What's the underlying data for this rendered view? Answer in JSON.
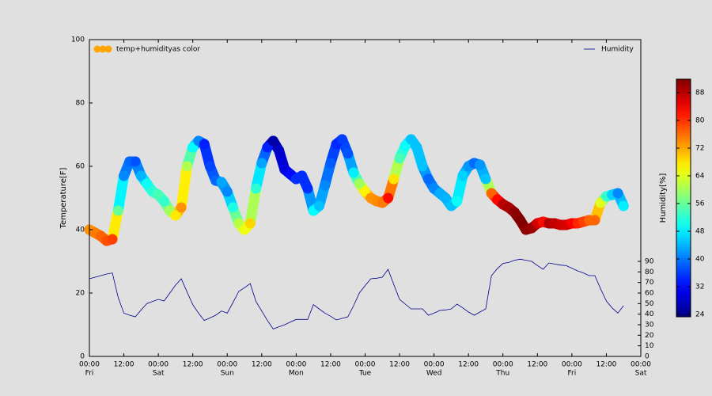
{
  "chart_data": {
    "type": "scatter",
    "ylabel": "Temperature[F]",
    "xlim": [
      0,
      192
    ],
    "xticks": [
      {
        "value": 0,
        "label": "00:00"
      },
      {
        "value": 12,
        "label": "12:00"
      },
      {
        "value": 24,
        "label": "00:00"
      },
      {
        "value": 36,
        "label": "12:00"
      },
      {
        "value": 48,
        "label": "00:00"
      },
      {
        "value": 60,
        "label": "12:00"
      },
      {
        "value": 72,
        "label": "00:00"
      },
      {
        "value": 84,
        "label": "12:00"
      },
      {
        "value": 96,
        "label": "00:00"
      },
      {
        "value": 108,
        "label": "12:00"
      },
      {
        "value": 120,
        "label": "00:00"
      },
      {
        "value": 132,
        "label": "12:00"
      },
      {
        "value": 144,
        "label": "00:00"
      },
      {
        "value": 156,
        "label": "12:00"
      },
      {
        "value": 168,
        "label": "00:00"
      },
      {
        "value": 180,
        "label": "12:00"
      },
      {
        "value": 192,
        "label": "00:00"
      }
    ],
    "day_ticks": [
      {
        "value": 0,
        "label": "Fri"
      },
      {
        "value": 24,
        "label": "Sat"
      },
      {
        "value": 48,
        "label": "Sun"
      },
      {
        "value": 72,
        "label": "Mon"
      },
      {
        "value": 96,
        "label": "Tue"
      },
      {
        "value": 120,
        "label": "Wed"
      },
      {
        "value": 144,
        "label": "Thu"
      },
      {
        "value": 168,
        "label": "Fri"
      },
      {
        "value": 192,
        "label": "Sat"
      }
    ],
    "ylim": [
      0,
      100
    ],
    "yticks": [
      0,
      20,
      40,
      60,
      80,
      100
    ],
    "y2lim": [
      0,
      300
    ],
    "y2ticks": [
      0,
      10,
      20,
      30,
      40,
      50,
      60,
      70,
      80,
      90
    ],
    "x": [
      0,
      2,
      4,
      6,
      8,
      10,
      12,
      14,
      16,
      18,
      20,
      22,
      24,
      26,
      28,
      30,
      32,
      34,
      36,
      38,
      40,
      42,
      44,
      46,
      48,
      50,
      52,
      54,
      56,
      58,
      60,
      62,
      64,
      66,
      68,
      70,
      72,
      74,
      76,
      78,
      80,
      82,
      84,
      86,
      88,
      90,
      92,
      94,
      96,
      98,
      100,
      102,
      104,
      106,
      108,
      110,
      112,
      114,
      116,
      118,
      120,
      122,
      124,
      126,
      128,
      130,
      132,
      134,
      136,
      138,
      140,
      142,
      144,
      146,
      148,
      150,
      152,
      154,
      156,
      158,
      160,
      162,
      164,
      166,
      168,
      170,
      172,
      174,
      176,
      178,
      180,
      182,
      184,
      186
    ],
    "series": [
      {
        "name": "temp+humidityas color",
        "legend_color": "#ffa500",
        "color_by": "Humidity",
        "values": [
          40,
          39,
          38,
          36.5,
          37,
          46,
          57,
          61.5,
          61.5,
          57,
          54.5,
          52,
          51,
          49,
          46,
          44.5,
          47,
          60,
          66,
          68,
          67,
          60,
          55.5,
          55,
          52,
          47,
          42,
          40,
          42,
          53,
          61,
          66,
          68,
          65,
          59,
          57.5,
          56,
          57,
          53,
          46,
          47.5,
          54,
          61,
          67,
          68.5,
          64,
          58,
          54.5,
          52,
          50,
          49,
          48.5,
          50,
          56,
          62.5,
          66.5,
          68.5,
          66,
          60,
          56,
          53,
          51.5,
          50,
          47.5,
          49,
          57,
          60,
          61,
          60.5,
          56,
          51.5,
          49.5,
          48,
          47,
          45.5,
          43,
          40,
          40.5,
          42,
          42.5,
          42,
          42,
          41.5,
          41.5,
          42,
          42,
          42.5,
          43,
          43,
          48.5,
          50.5,
          51,
          51.5,
          47.5
        ]
      },
      {
        "name": "Humidity",
        "axis": "y2",
        "color": "#00008b",
        "values": [
          73.5,
          75,
          76.5,
          78,
          79,
          56,
          41,
          39,
          37.5,
          44,
          50,
          52,
          54,
          52.5,
          60,
          67.5,
          73.5,
          61,
          49,
          41,
          34,
          36.5,
          39,
          43,
          41,
          51,
          61.5,
          65,
          69,
          52,
          43,
          34,
          26,
          28,
          30,
          32.5,
          35,
          35,
          35,
          49,
          45,
          41,
          38,
          34.5,
          36,
          37.5,
          48,
          60,
          67,
          73.5,
          74,
          75,
          82.5,
          68,
          54,
          49.5,
          45,
          45,
          45,
          39,
          41,
          43.5,
          44,
          45,
          49.5,
          46,
          42,
          39,
          42,
          45,
          76.5,
          83,
          88,
          89,
          91,
          92,
          91,
          90,
          86,
          82.5,
          88.5,
          87.5,
          86.5,
          86,
          83.5,
          81,
          79,
          76.5,
          76.5,
          64,
          52.5,
          46,
          41,
          48
        ]
      }
    ],
    "colorbar": {
      "label": "Humidity[%]",
      "cmap": "jet",
      "clim": [
        23.3,
        91.9
      ],
      "ticks": [
        24,
        32,
        40,
        48,
        56,
        64,
        72,
        80,
        88
      ]
    }
  }
}
